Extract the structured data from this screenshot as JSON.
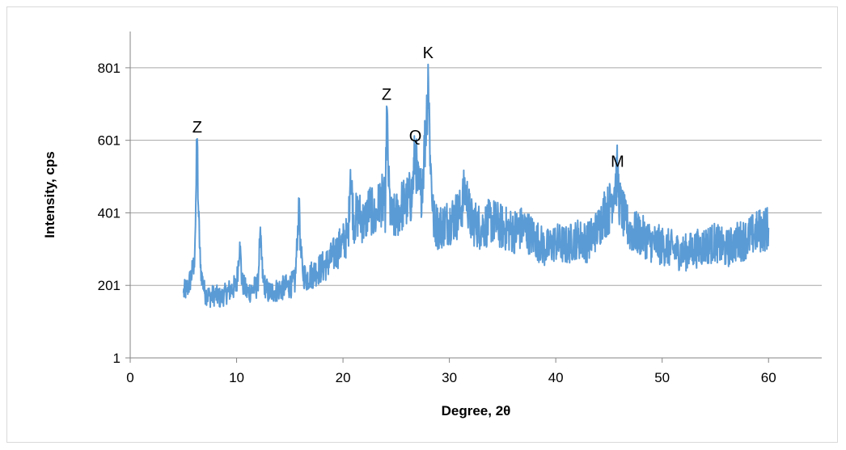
{
  "chart_data": {
    "type": "line",
    "title": "",
    "xlabel": "Degree, 2θ",
    "ylabel": "Intensity, cps",
    "xlim": [
      0,
      65
    ],
    "ylim": [
      1,
      901
    ],
    "x_ticks": [
      "0",
      "10",
      "20",
      "30",
      "40",
      "50",
      "60"
    ],
    "x_tick_values": [
      0,
      10,
      20,
      30,
      40,
      50,
      60
    ],
    "y_ticks": [
      "1",
      "201",
      "401",
      "601",
      "801"
    ],
    "y_tick_values": [
      1,
      201,
      401,
      601,
      801
    ],
    "grid": "horizontal",
    "legend": "none",
    "line_color": "#5b9bd5",
    "series": [
      {
        "x": [
          5.0,
          5.5,
          6.0,
          6.1,
          6.2,
          6.3,
          6.4,
          6.6,
          7.0,
          7.5,
          8.0,
          8.5,
          9.0,
          9.5,
          10.0,
          10.3,
          10.5,
          11.0,
          11.5,
          12.0,
          12.2,
          12.5,
          13.0,
          13.5,
          14.0,
          14.5,
          15.0,
          15.5,
          15.9,
          16.0,
          16.2,
          16.5,
          17.0,
          17.5,
          18.0,
          18.5,
          19.0,
          19.5,
          20.0,
          20.5,
          20.7,
          21.0,
          21.5,
          22.0,
          22.5,
          23.0,
          23.5,
          24.0,
          24.1,
          24.3,
          24.5,
          25.0,
          25.5,
          26.0,
          26.5,
          26.8,
          27.0,
          27.3,
          27.6,
          27.9,
          28.0,
          28.2,
          28.5,
          29.0,
          29.5,
          30.0,
          30.5,
          31.0,
          31.5,
          32.0,
          32.5,
          33.0,
          34.0,
          35.0,
          36.0,
          37.0,
          38.0,
          38.5,
          39.0,
          40.0,
          41.0,
          42.0,
          43.0,
          44.0,
          44.5,
          45.0,
          45.5,
          45.8,
          46.0,
          46.5,
          47.0,
          48.0,
          49.0,
          50.0,
          51.0,
          52.0,
          53.0,
          54.0,
          55.0,
          56.0,
          57.0,
          58.0,
          59.0,
          60.0
        ],
        "values": [
          180,
          200,
          260,
          330,
          480,
          605,
          420,
          250,
          180,
          170,
          175,
          165,
          180,
          190,
          200,
          320,
          210,
          180,
          190,
          200,
          340,
          210,
          180,
          185,
          190,
          195,
          200,
          210,
          440,
          300,
          240,
          220,
          230,
          240,
          250,
          260,
          280,
          300,
          320,
          340,
          520,
          380,
          400,
          370,
          420,
          380,
          440,
          420,
          695,
          480,
          380,
          390,
          420,
          430,
          450,
          580,
          480,
          450,
          540,
          700,
          810,
          560,
          380,
          360,
          370,
          380,
          390,
          400,
          470,
          380,
          370,
          360,
          380,
          360,
          350,
          360,
          330,
          320,
          300,
          320,
          310,
          330,
          320,
          360,
          400,
          410,
          470,
          510,
          430,
          380,
          350,
          340,
          320,
          310,
          300,
          290,
          300,
          310,
          320,
          300,
          320,
          330,
          350,
          360
        ]
      }
    ],
    "annotations": [
      {
        "text": "Z",
        "x": 6.3,
        "y": 605
      },
      {
        "text": "Z",
        "x": 24.1,
        "y": 695
      },
      {
        "text": "Q",
        "x": 26.8,
        "y": 580
      },
      {
        "text": "K",
        "x": 28.0,
        "y": 810
      },
      {
        "text": "M",
        "x": 45.8,
        "y": 510
      }
    ]
  }
}
